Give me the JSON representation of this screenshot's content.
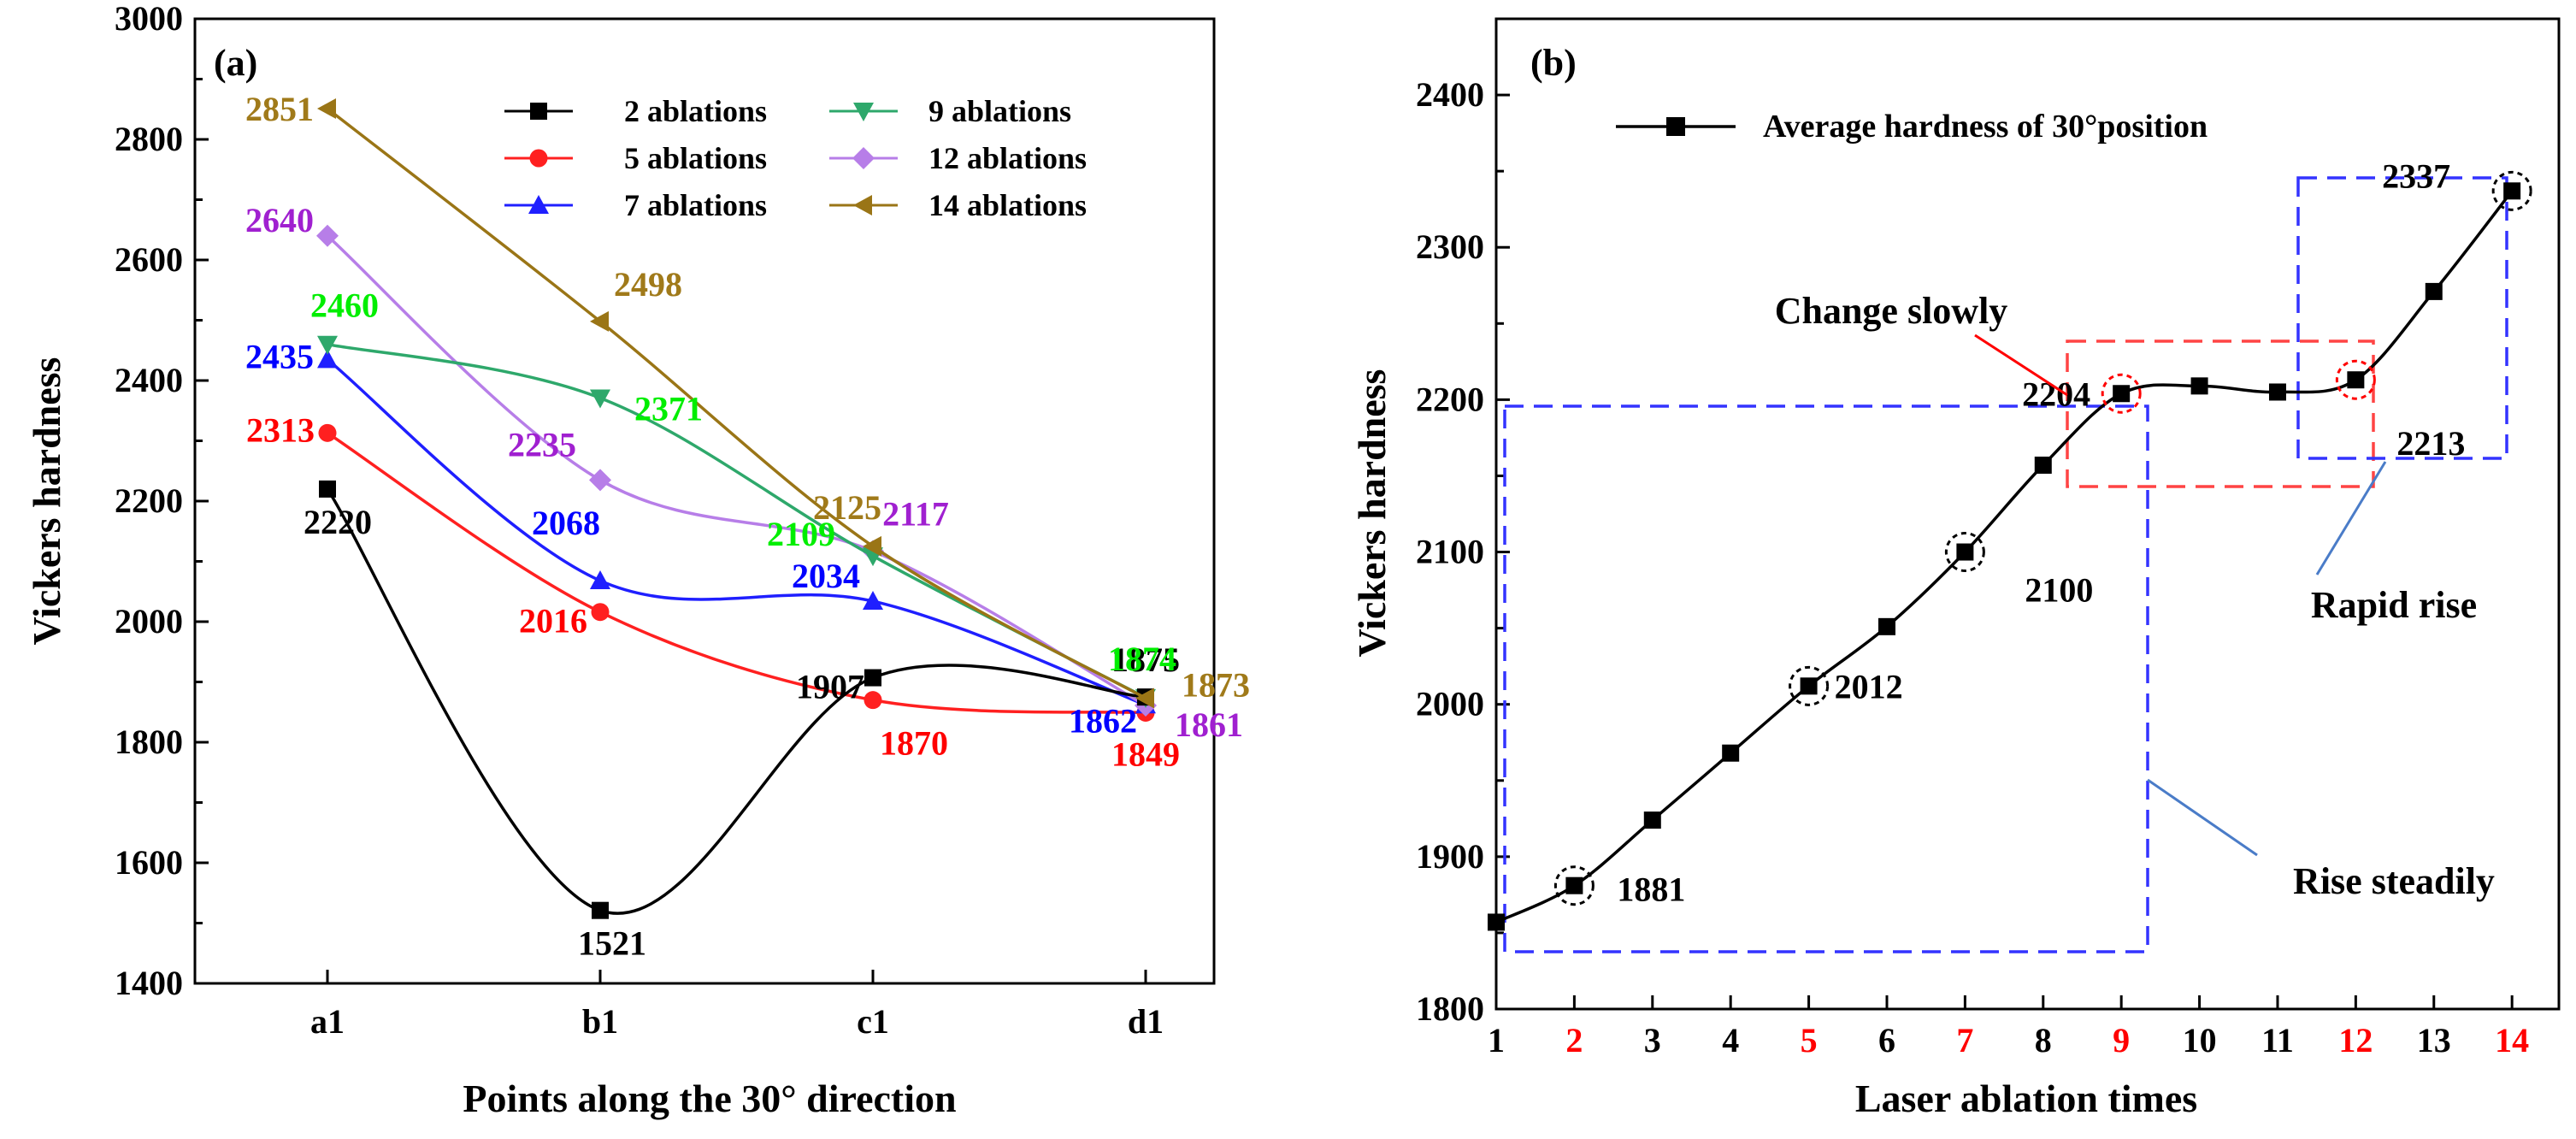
{
  "chart_data": [
    {
      "panel_label": "(a)",
      "type": "line",
      "xlabel": "Points along the 30° direction",
      "ylabel": "Vickers hardness",
      "categories": [
        "a1",
        "b1",
        "c1",
        "d1"
      ],
      "ylim": [
        1400,
        3000
      ],
      "yticks": [
        1400,
        1600,
        1800,
        2000,
        2200,
        2400,
        2600,
        2800,
        3000
      ],
      "legend_position": "top-right",
      "series": [
        {
          "name": "2 ablations",
          "marker": "square",
          "color": "#000000",
          "values": [
            2220,
            1521,
            1907,
            1875
          ]
        },
        {
          "name": "5 ablations",
          "marker": "circle",
          "color": "#ff2020",
          "values": [
            2313,
            2016,
            1870,
            1849
          ]
        },
        {
          "name": "7 ablations",
          "marker": "triangle-up",
          "color": "#1f1fff",
          "values": [
            2435,
            2068,
            2034,
            1862
          ]
        },
        {
          "name": "9 ablations",
          "marker": "triangle-down",
          "color": "#2ea86b",
          "values": [
            2460,
            2371,
            2109,
            1874
          ]
        },
        {
          "name": "12 ablations",
          "marker": "diamond",
          "color": "#b77ee8",
          "values": [
            2640,
            2235,
            2117,
            1861
          ]
        },
        {
          "name": "14 ablations",
          "marker": "triangle-left",
          "color": "#9a7516",
          "values": [
            2851,
            2498,
            2125,
            1873
          ]
        }
      ],
      "data_label_colors": {
        "2 ablations": "#000000",
        "5 ablations": "#ff0000",
        "7 ablations": "#0000ff",
        "9 ablations": "#00ee00",
        "12 ablations": "#a020d0",
        "14 ablations": "#a07a1a"
      }
    },
    {
      "panel_label": "(b)",
      "type": "line",
      "xlabel": "Laser ablation times",
      "ylabel": "Vickers hardness",
      "ylim": [
        1800,
        2450
      ],
      "xlim": [
        1,
        14.6
      ],
      "yticks": [
        1800,
        1900,
        2000,
        2100,
        2200,
        2300,
        2400
      ],
      "xticks": [
        1,
        2,
        3,
        4,
        5,
        6,
        7,
        8,
        9,
        10,
        11,
        12,
        13,
        14
      ],
      "highlighted_xticks": [
        2,
        5,
        7,
        9,
        12,
        14
      ],
      "highlight_color": "#ff0000",
      "legend_position": "top",
      "series": [
        {
          "name": "Average hardness of 30°position",
          "color": "#000000",
          "marker": "square",
          "x": [
            1,
            2,
            3,
            4,
            5,
            6,
            7,
            8,
            9,
            10,
            11,
            12,
            13,
            14
          ],
          "y": [
            1857,
            1881,
            1924,
            1968,
            2012,
            2051,
            2100,
            2157,
            2204,
            2209,
            2205,
            2213,
            2271,
            2337
          ]
        }
      ],
      "point_labels": [
        {
          "x": 2,
          "text": "1881"
        },
        {
          "x": 5,
          "text": "2012"
        },
        {
          "x": 7,
          "text": "2100"
        },
        {
          "x": 9,
          "text": "2204"
        },
        {
          "x": 12,
          "text": "2213"
        },
        {
          "x": 14,
          "text": "2337"
        }
      ],
      "annotations": [
        {
          "text": "Change slowly",
          "box_color": "#ff4444"
        },
        {
          "text": "Rise steadily",
          "box_color": "#3333ff"
        },
        {
          "text": "Rapid rise",
          "box_color": "#3333ff"
        }
      ]
    }
  ]
}
